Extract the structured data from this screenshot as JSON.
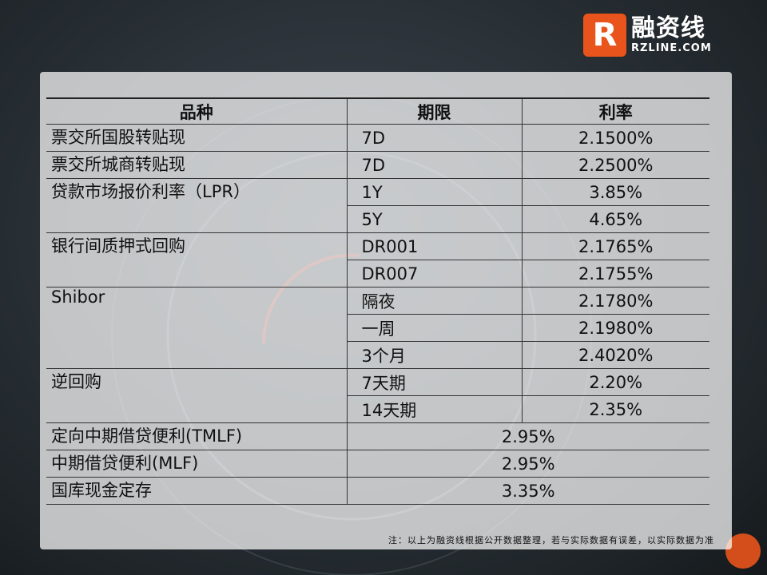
{
  "logo": {
    "mark": "R",
    "cn": "融资线",
    "en": "RZLINE.COM"
  },
  "table": {
    "headers": [
      "品种",
      "期限",
      "利率"
    ],
    "rows": [
      {
        "name": "票交所国股转贴现",
        "items": [
          {
            "term": "7D",
            "rate": "2.1500%"
          }
        ]
      },
      {
        "name": "票交所城商转贴现",
        "items": [
          {
            "term": "7D",
            "rate": "2.2500%"
          }
        ]
      },
      {
        "name": "贷款市场报价利率（LPR）",
        "items": [
          {
            "term": "1Y",
            "rate": "3.85%"
          },
          {
            "term": "5Y",
            "rate": "4.65%"
          }
        ]
      },
      {
        "name": "银行间质押式回购",
        "items": [
          {
            "term": "DR001",
            "rate": "2.1765%"
          },
          {
            "term": "DR007",
            "rate": "2.1755%"
          }
        ]
      },
      {
        "name": "Shibor",
        "items": [
          {
            "term": "隔夜",
            "rate": "2.1780%"
          },
          {
            "term": "一周",
            "rate": "2.1980%"
          },
          {
            "term": "3个月",
            "rate": "2.4020%"
          }
        ]
      },
      {
        "name": "逆回购",
        "items": [
          {
            "term": "7天期",
            "rate": "2.20%"
          },
          {
            "term": "14天期",
            "rate": "2.35%"
          }
        ]
      }
    ],
    "merged_rows": [
      {
        "name": "定向中期借贷便利(TMLF)",
        "rate": "2.95%"
      },
      {
        "name": "中期借贷便利(MLF)",
        "rate": "2.95%"
      },
      {
        "name": "国库现金定存",
        "rate": "3.35%"
      }
    ]
  },
  "note": "注：以上为融资线根据公开数据整理，若与实际数据有误差，以实际数据为准"
}
